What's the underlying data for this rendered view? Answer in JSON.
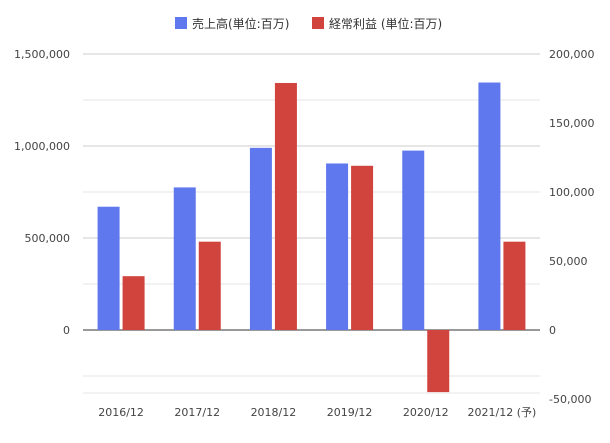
{
  "chart_data": {
    "type": "bar",
    "categories": [
      "2016/12",
      "2017/12",
      "2018/12",
      "2019/12",
      "2020/12",
      "2021/12 (予)"
    ],
    "series": [
      {
        "name": "売上高(単位:百万)",
        "axis": "left",
        "color": "#6078ee",
        "values": [
          670000,
          775000,
          990000,
          905000,
          975000,
          1345000
        ]
      },
      {
        "name": "経常利益 (単位:百万)",
        "axis": "right",
        "color": "#d1443e",
        "values": [
          39000,
          64000,
          179000,
          119000,
          -45000,
          64000
        ]
      }
    ],
    "y_left": {
      "ticks": [
        0,
        500000,
        1000000,
        1500000
      ],
      "tick_labels": [
        "0",
        "500,000",
        "1,000,000",
        "1,500,000"
      ],
      "range": [
        -373000,
        1500000
      ]
    },
    "y_right": {
      "ticks": [
        -50000,
        0,
        50000,
        100000,
        150000,
        200000
      ],
      "tick_labels": [
        "-50,000",
        "0",
        "50,000",
        "100,000",
        "150,000",
        "200,000"
      ],
      "range": [
        -50000,
        200000
      ]
    },
    "legend_position": "top-center",
    "grid": true
  }
}
